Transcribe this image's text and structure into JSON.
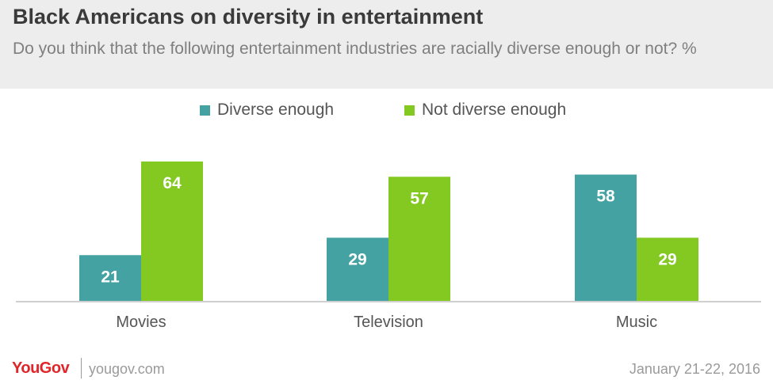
{
  "header": {
    "title": "Black Americans on diversity in entertainment",
    "subtitle": "Do you think that the following entertainment industries are racially diverse enough or not? %"
  },
  "legend": [
    {
      "label": "Diverse enough",
      "color": "#44a2a3"
    },
    {
      "label": "Not diverse enough",
      "color": "#83c921"
    }
  ],
  "chart_data": {
    "type": "bar",
    "categories": [
      "Movies",
      "Television",
      "Music"
    ],
    "series": [
      {
        "name": "Diverse enough",
        "values": [
          21,
          29,
          58
        ],
        "color": "#44a2a3"
      },
      {
        "name": "Not diverse enough",
        "values": [
          64,
          57,
          29
        ],
        "color": "#83c921"
      }
    ],
    "ylim": [
      0,
      64
    ],
    "grid": false,
    "legend_position": "top-center"
  },
  "footer": {
    "brand": "YouGov",
    "site": "yougov.com",
    "date": "January 21-22, 2016"
  }
}
